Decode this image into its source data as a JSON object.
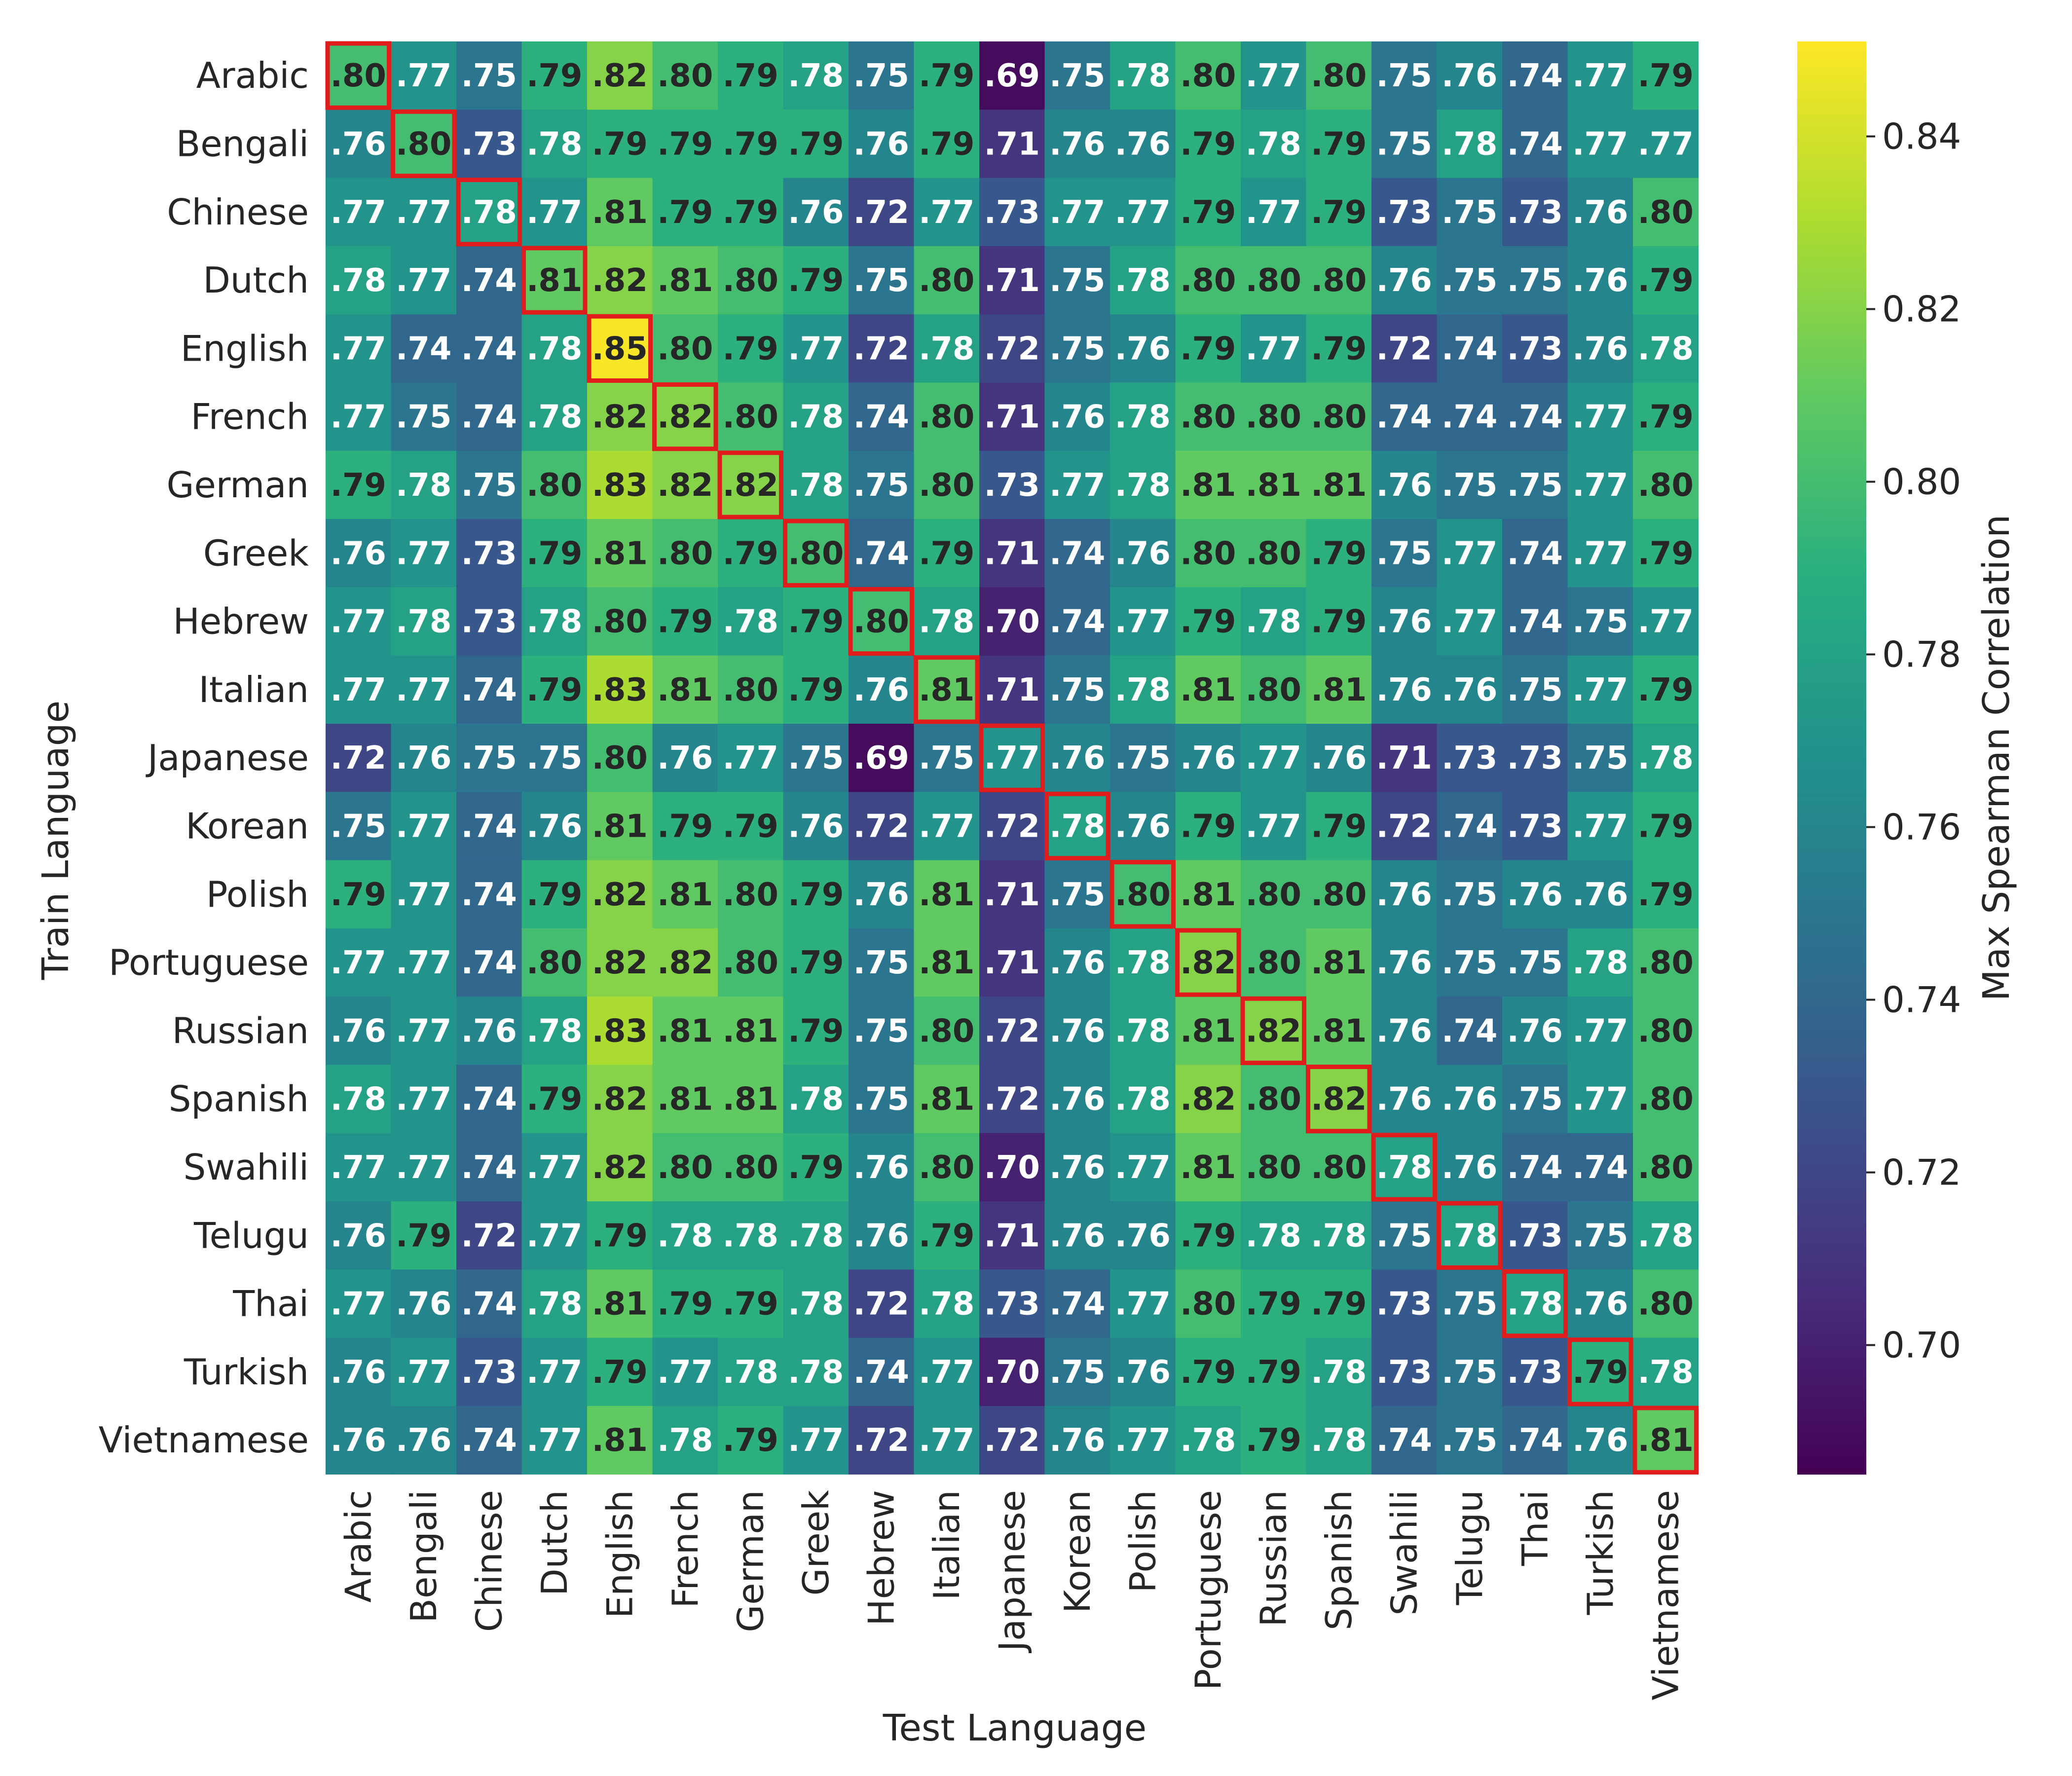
{
  "chart_data": {
    "type": "heatmap",
    "title": "",
    "xlabel": "Test Language",
    "ylabel": "Train Language",
    "colorbar_label": "Max Spearman Correlation",
    "colormap": "viridis",
    "vmin": 0.685,
    "vmax": 0.851,
    "colorbar_ticks": [
      0.7,
      0.72,
      0.74,
      0.76,
      0.78,
      0.8,
      0.82,
      0.84
    ],
    "colorbar_tick_labels": [
      "0.70",
      "0.72",
      "0.74",
      "0.76",
      "0.78",
      "0.80",
      "0.82",
      "0.84"
    ],
    "highlight_color": "#e01c1c",
    "highlight": "diagonal",
    "x_categories": [
      "Arabic",
      "Bengali",
      "Chinese",
      "Dutch",
      "English",
      "French",
      "German",
      "Greek",
      "Hebrew",
      "Italian",
      "Japanese",
      "Korean",
      "Polish",
      "Portuguese",
      "Russian",
      "Spanish",
      "Swahili",
      "Telugu",
      "Thai",
      "Turkish",
      "Vietnamese"
    ],
    "y_categories": [
      "Arabic",
      "Bengali",
      "Chinese",
      "Dutch",
      "English",
      "French",
      "German",
      "Greek",
      "Hebrew",
      "Italian",
      "Japanese",
      "Korean",
      "Polish",
      "Portuguese",
      "Russian",
      "Spanish",
      "Swahili",
      "Telugu",
      "Thai",
      "Turkish",
      "Vietnamese"
    ],
    "values": [
      [
        0.8,
        0.77,
        0.75,
        0.79,
        0.82,
        0.8,
        0.79,
        0.78,
        0.75,
        0.79,
        0.69,
        0.75,
        0.78,
        0.8,
        0.77,
        0.8,
        0.75,
        0.76,
        0.74,
        0.77,
        0.79
      ],
      [
        0.76,
        0.8,
        0.73,
        0.78,
        0.79,
        0.79,
        0.79,
        0.79,
        0.76,
        0.79,
        0.71,
        0.76,
        0.76,
        0.79,
        0.78,
        0.79,
        0.75,
        0.78,
        0.74,
        0.77,
        0.77
      ],
      [
        0.77,
        0.77,
        0.78,
        0.77,
        0.81,
        0.79,
        0.79,
        0.76,
        0.72,
        0.77,
        0.73,
        0.77,
        0.77,
        0.79,
        0.77,
        0.79,
        0.73,
        0.75,
        0.73,
        0.76,
        0.8
      ],
      [
        0.78,
        0.77,
        0.74,
        0.81,
        0.82,
        0.81,
        0.8,
        0.79,
        0.75,
        0.8,
        0.71,
        0.75,
        0.78,
        0.8,
        0.8,
        0.8,
        0.76,
        0.75,
        0.75,
        0.76,
        0.79
      ],
      [
        0.77,
        0.74,
        0.74,
        0.78,
        0.85,
        0.8,
        0.79,
        0.77,
        0.72,
        0.78,
        0.72,
        0.75,
        0.76,
        0.79,
        0.77,
        0.79,
        0.72,
        0.74,
        0.73,
        0.76,
        0.78
      ],
      [
        0.77,
        0.75,
        0.74,
        0.78,
        0.82,
        0.82,
        0.8,
        0.78,
        0.74,
        0.8,
        0.71,
        0.76,
        0.78,
        0.8,
        0.8,
        0.8,
        0.74,
        0.74,
        0.74,
        0.77,
        0.79
      ],
      [
        0.79,
        0.78,
        0.75,
        0.8,
        0.83,
        0.82,
        0.82,
        0.78,
        0.75,
        0.8,
        0.73,
        0.77,
        0.78,
        0.81,
        0.81,
        0.81,
        0.76,
        0.75,
        0.75,
        0.77,
        0.8
      ],
      [
        0.76,
        0.77,
        0.73,
        0.79,
        0.81,
        0.8,
        0.79,
        0.8,
        0.74,
        0.79,
        0.71,
        0.74,
        0.76,
        0.8,
        0.8,
        0.79,
        0.75,
        0.77,
        0.74,
        0.77,
        0.79
      ],
      [
        0.77,
        0.78,
        0.73,
        0.78,
        0.8,
        0.79,
        0.78,
        0.79,
        0.8,
        0.78,
        0.7,
        0.74,
        0.77,
        0.79,
        0.78,
        0.79,
        0.76,
        0.77,
        0.74,
        0.75,
        0.77
      ],
      [
        0.77,
        0.77,
        0.74,
        0.79,
        0.83,
        0.81,
        0.8,
        0.79,
        0.76,
        0.81,
        0.71,
        0.75,
        0.78,
        0.81,
        0.8,
        0.81,
        0.76,
        0.76,
        0.75,
        0.77,
        0.79
      ],
      [
        0.72,
        0.76,
        0.75,
        0.75,
        0.8,
        0.76,
        0.77,
        0.75,
        0.69,
        0.75,
        0.77,
        0.76,
        0.75,
        0.76,
        0.77,
        0.76,
        0.71,
        0.73,
        0.73,
        0.75,
        0.78
      ],
      [
        0.75,
        0.77,
        0.74,
        0.76,
        0.81,
        0.79,
        0.79,
        0.76,
        0.72,
        0.77,
        0.72,
        0.78,
        0.76,
        0.79,
        0.77,
        0.79,
        0.72,
        0.74,
        0.73,
        0.77,
        0.79
      ],
      [
        0.79,
        0.77,
        0.74,
        0.79,
        0.82,
        0.81,
        0.8,
        0.79,
        0.76,
        0.81,
        0.71,
        0.75,
        0.8,
        0.81,
        0.8,
        0.8,
        0.76,
        0.75,
        0.76,
        0.76,
        0.79
      ],
      [
        0.77,
        0.77,
        0.74,
        0.8,
        0.82,
        0.82,
        0.8,
        0.79,
        0.75,
        0.81,
        0.71,
        0.76,
        0.78,
        0.82,
        0.8,
        0.81,
        0.76,
        0.75,
        0.75,
        0.78,
        0.8
      ],
      [
        0.76,
        0.77,
        0.76,
        0.78,
        0.83,
        0.81,
        0.81,
        0.79,
        0.75,
        0.8,
        0.72,
        0.76,
        0.78,
        0.81,
        0.82,
        0.81,
        0.76,
        0.74,
        0.76,
        0.77,
        0.8
      ],
      [
        0.78,
        0.77,
        0.74,
        0.79,
        0.82,
        0.81,
        0.81,
        0.78,
        0.75,
        0.81,
        0.72,
        0.76,
        0.78,
        0.82,
        0.8,
        0.82,
        0.76,
        0.76,
        0.75,
        0.77,
        0.8
      ],
      [
        0.77,
        0.77,
        0.74,
        0.77,
        0.82,
        0.8,
        0.8,
        0.79,
        0.76,
        0.8,
        0.7,
        0.76,
        0.77,
        0.81,
        0.8,
        0.8,
        0.78,
        0.76,
        0.74,
        0.74,
        0.8
      ],
      [
        0.76,
        0.79,
        0.72,
        0.77,
        0.79,
        0.78,
        0.78,
        0.78,
        0.76,
        0.79,
        0.71,
        0.76,
        0.76,
        0.79,
        0.78,
        0.78,
        0.75,
        0.78,
        0.73,
        0.75,
        0.78
      ],
      [
        0.77,
        0.76,
        0.74,
        0.78,
        0.81,
        0.79,
        0.79,
        0.78,
        0.72,
        0.78,
        0.73,
        0.74,
        0.77,
        0.8,
        0.79,
        0.79,
        0.73,
        0.75,
        0.78,
        0.76,
        0.8
      ],
      [
        0.76,
        0.77,
        0.73,
        0.77,
        0.79,
        0.77,
        0.78,
        0.78,
        0.74,
        0.77,
        0.7,
        0.75,
        0.76,
        0.79,
        0.79,
        0.78,
        0.73,
        0.75,
        0.73,
        0.79,
        0.78
      ],
      [
        0.76,
        0.76,
        0.74,
        0.77,
        0.81,
        0.78,
        0.79,
        0.77,
        0.72,
        0.77,
        0.72,
        0.76,
        0.77,
        0.78,
        0.79,
        0.78,
        0.74,
        0.75,
        0.74,
        0.76,
        0.81
      ]
    ],
    "cell_labels": [
      [
        ".80",
        ".77",
        ".75",
        ".79",
        ".82",
        ".80",
        ".79",
        ".78",
        ".75",
        ".79",
        ".69",
        ".75",
        ".78",
        ".80",
        ".77",
        ".80",
        ".75",
        ".76",
        ".74",
        ".77",
        ".79"
      ],
      [
        ".76",
        ".80",
        ".73",
        ".78",
        ".79",
        ".79",
        ".79",
        ".79",
        ".76",
        ".79",
        ".71",
        ".76",
        ".76",
        ".79",
        ".78",
        ".79",
        ".75",
        ".78",
        ".74",
        ".77",
        ".77"
      ],
      [
        ".77",
        ".77",
        ".78",
        ".77",
        ".81",
        ".79",
        ".79",
        ".76",
        ".72",
        ".77",
        ".73",
        ".77",
        ".77",
        ".79",
        ".77",
        ".79",
        ".73",
        ".75",
        ".73",
        ".76",
        ".80"
      ],
      [
        ".78",
        ".77",
        ".74",
        ".81",
        ".82",
        ".81",
        ".80",
        ".79",
        ".75",
        ".80",
        ".71",
        ".75",
        ".78",
        ".80",
        ".80",
        ".80",
        ".76",
        ".75",
        ".75",
        ".76",
        ".79"
      ],
      [
        ".77",
        ".74",
        ".74",
        ".78",
        ".85",
        ".80",
        ".79",
        ".77",
        ".72",
        ".78",
        ".72",
        ".75",
        ".76",
        ".79",
        ".77",
        ".79",
        ".72",
        ".74",
        ".73",
        ".76",
        ".78"
      ],
      [
        ".77",
        ".75",
        ".74",
        ".78",
        ".82",
        ".82",
        ".80",
        ".78",
        ".74",
        ".80",
        ".71",
        ".76",
        ".78",
        ".80",
        ".80",
        ".80",
        ".74",
        ".74",
        ".74",
        ".77",
        ".79"
      ],
      [
        ".79",
        ".78",
        ".75",
        ".80",
        ".83",
        ".82",
        ".82",
        ".78",
        ".75",
        ".80",
        ".73",
        ".77",
        ".78",
        ".81",
        ".81",
        ".81",
        ".76",
        ".75",
        ".75",
        ".77",
        ".80"
      ],
      [
        ".76",
        ".77",
        ".73",
        ".79",
        ".81",
        ".80",
        ".79",
        ".80",
        ".74",
        ".79",
        ".71",
        ".74",
        ".76",
        ".80",
        ".80",
        ".79",
        ".75",
        ".77",
        ".74",
        ".77",
        ".79"
      ],
      [
        ".77",
        ".78",
        ".73",
        ".78",
        ".80",
        ".79",
        ".78",
        ".79",
        ".80",
        ".78",
        ".70",
        ".74",
        ".77",
        ".79",
        ".78",
        ".79",
        ".76",
        ".77",
        ".74",
        ".75",
        ".77"
      ],
      [
        ".77",
        ".77",
        ".74",
        ".79",
        ".83",
        ".81",
        ".80",
        ".79",
        ".76",
        ".81",
        ".71",
        ".75",
        ".78",
        ".81",
        ".80",
        ".81",
        ".76",
        ".76",
        ".75",
        ".77",
        ".79"
      ],
      [
        ".72",
        ".76",
        ".75",
        ".75",
        ".80",
        ".76",
        ".77",
        ".75",
        ".69",
        ".75",
        ".77",
        ".76",
        ".75",
        ".76",
        ".77",
        ".76",
        ".71",
        ".73",
        ".73",
        ".75",
        ".78"
      ],
      [
        ".75",
        ".77",
        ".74",
        ".76",
        ".81",
        ".79",
        ".79",
        ".76",
        ".72",
        ".77",
        ".72",
        ".78",
        ".76",
        ".79",
        ".77",
        ".79",
        ".72",
        ".74",
        ".73",
        ".77",
        ".79"
      ],
      [
        ".79",
        ".77",
        ".74",
        ".79",
        ".82",
        ".81",
        ".80",
        ".79",
        ".76",
        ".81",
        ".71",
        ".75",
        ".80",
        ".81",
        ".80",
        ".80",
        ".76",
        ".75",
        ".76",
        ".76",
        ".79"
      ],
      [
        ".77",
        ".77",
        ".74",
        ".80",
        ".82",
        ".82",
        ".80",
        ".79",
        ".75",
        ".81",
        ".71",
        ".76",
        ".78",
        ".82",
        ".80",
        ".81",
        ".76",
        ".75",
        ".75",
        ".78",
        ".80"
      ],
      [
        ".76",
        ".77",
        ".76",
        ".78",
        ".83",
        ".81",
        ".81",
        ".79",
        ".75",
        ".80",
        ".72",
        ".76",
        ".78",
        ".81",
        ".82",
        ".81",
        ".76",
        ".74",
        ".76",
        ".77",
        ".80"
      ],
      [
        ".78",
        ".77",
        ".74",
        ".79",
        ".82",
        ".81",
        ".81",
        ".78",
        ".75",
        ".81",
        ".72",
        ".76",
        ".78",
        ".82",
        ".80",
        ".82",
        ".76",
        ".76",
        ".75",
        ".77",
        ".80"
      ],
      [
        ".77",
        ".77",
        ".74",
        ".77",
        ".82",
        ".80",
        ".80",
        ".79",
        ".76",
        ".80",
        ".70",
        ".76",
        ".77",
        ".81",
        ".80",
        ".80",
        ".78",
        ".76",
        ".74",
        ".74",
        ".80"
      ],
      [
        ".76",
        ".79",
        ".72",
        ".77",
        ".79",
        ".78",
        ".78",
        ".78",
        ".76",
        ".79",
        ".71",
        ".76",
        ".76",
        ".79",
        ".78",
        ".78",
        ".75",
        ".78",
        ".73",
        ".75",
        ".78"
      ],
      [
        ".77",
        ".76",
        ".74",
        ".78",
        ".81",
        ".79",
        ".79",
        ".78",
        ".72",
        ".78",
        ".73",
        ".74",
        ".77",
        ".80",
        ".79",
        ".79",
        ".73",
        ".75",
        ".78",
        ".76",
        ".80"
      ],
      [
        ".76",
        ".77",
        ".73",
        ".77",
        ".79",
        ".77",
        ".78",
        ".78",
        ".74",
        ".77",
        ".70",
        ".75",
        ".76",
        ".79",
        ".79",
        ".78",
        ".73",
        ".75",
        ".73",
        ".79",
        ".78"
      ],
      [
        ".76",
        ".76",
        ".74",
        ".77",
        ".81",
        ".78",
        ".79",
        ".77",
        ".72",
        ".77",
        ".72",
        ".76",
        ".77",
        ".78",
        ".79",
        ".78",
        ".74",
        ".75",
        ".74",
        ".76",
        ".81"
      ]
    ]
  }
}
